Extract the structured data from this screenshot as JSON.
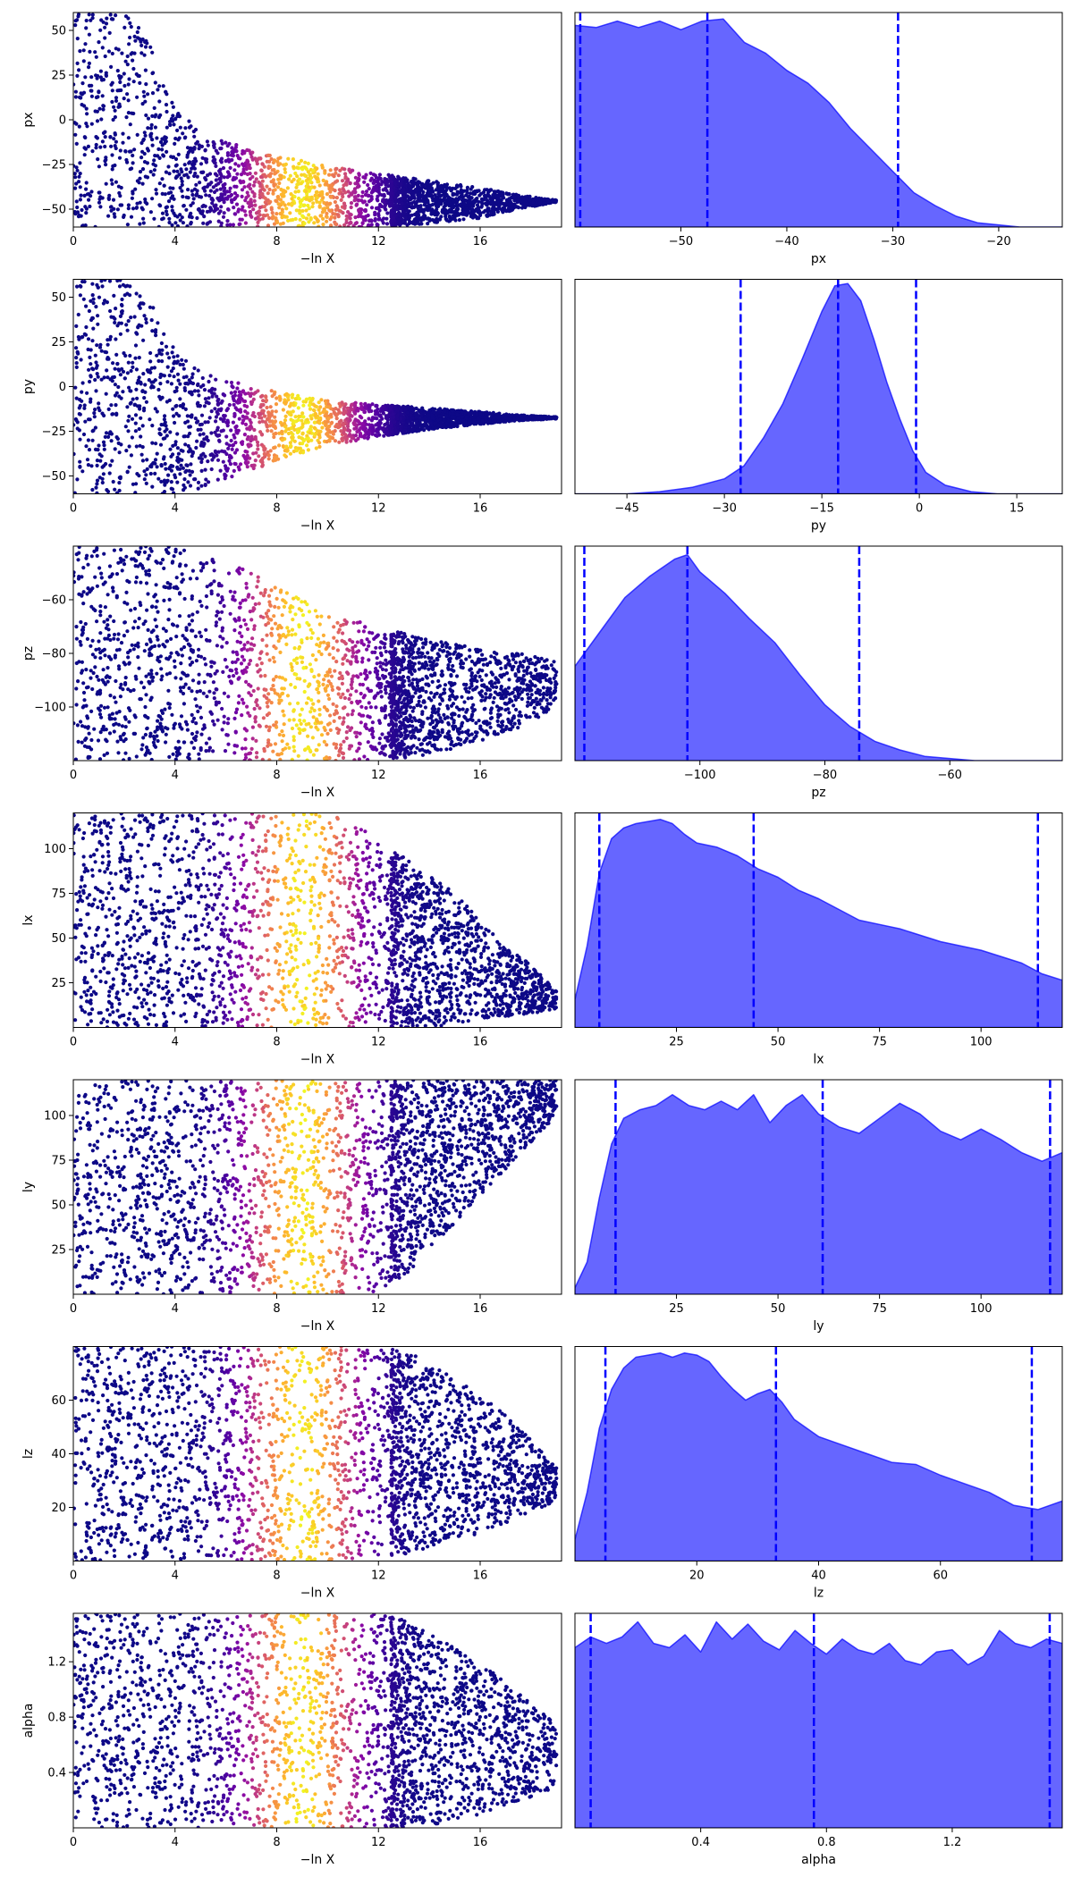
{
  "chart_data": [
    {
      "type": "scatter",
      "ylabel": "px",
      "xlabel": "−ln X",
      "xlim": [
        0,
        19.2
      ],
      "ylim": [
        -60,
        60
      ],
      "xticks": [
        0,
        4,
        8,
        12,
        16
      ],
      "yticks": [
        -50,
        -25,
        0,
        25,
        50
      ],
      "colormap": "plasma",
      "color_peak_x": 9,
      "envelope": {
        "x": [
          0,
          2,
          3,
          4,
          5,
          6,
          8,
          10,
          12,
          14,
          16,
          17.5,
          19
        ],
        "top": [
          60,
          60,
          45,
          5,
          -5,
          -12,
          -20,
          -26,
          -30,
          -34,
          -38,
          -42,
          -45
        ],
        "bottom": [
          -60,
          -60,
          -60,
          -60,
          -60,
          -60,
          -60,
          -60,
          -60,
          -58,
          -55,
          -50,
          -46
        ]
      }
    },
    {
      "type": "area",
      "xlabel": "px",
      "xlim": [
        -60,
        -14
      ],
      "xticks": [
        -50,
        -40,
        -30,
        -20
      ],
      "color": "#0000ff",
      "quantile_lines": [
        -59.5,
        -47.5,
        -29.5
      ],
      "x": [
        -60,
        -58,
        -56,
        -54,
        -52,
        -50,
        -48,
        -46,
        -44,
        -42,
        -40,
        -38,
        -36,
        -34,
        -32,
        -30,
        -28,
        -26,
        -24,
        -22,
        -20,
        -18,
        -16,
        -14
      ],
      "y": [
        0.94,
        0.93,
        0.96,
        0.93,
        0.96,
        0.92,
        0.96,
        0.97,
        0.86,
        0.81,
        0.73,
        0.67,
        0.58,
        0.46,
        0.36,
        0.26,
        0.16,
        0.1,
        0.05,
        0.02,
        0.01,
        0.0,
        0.0,
        0.0
      ]
    },
    {
      "type": "scatter",
      "ylabel": "py",
      "xlabel": "−ln X",
      "xlim": [
        0,
        19.2
      ],
      "ylim": [
        -60,
        60
      ],
      "xticks": [
        0,
        4,
        8,
        12,
        16
      ],
      "yticks": [
        -50,
        -25,
        0,
        25,
        50
      ],
      "colormap": "plasma",
      "color_peak_x": 9,
      "envelope": {
        "x": [
          0,
          2,
          3,
          4,
          5,
          6,
          8,
          10,
          12,
          14,
          16,
          17.5,
          19
        ],
        "top": [
          60,
          60,
          50,
          20,
          8,
          4,
          -3,
          -8,
          -10,
          -12,
          -14,
          -16,
          -17
        ],
        "bottom": [
          -60,
          -60,
          -60,
          -60,
          -58,
          -52,
          -42,
          -33,
          -28,
          -24,
          -21,
          -19,
          -18
        ]
      }
    },
    {
      "type": "area",
      "xlabel": "py",
      "xlim": [
        -53,
        22
      ],
      "xticks": [
        -45,
        -30,
        -15,
        0,
        15
      ],
      "color": "#0000ff",
      "quantile_lines": [
        -27.5,
        -12.5,
        -0.5
      ],
      "x": [
        -53,
        -45,
        -40,
        -35,
        -30,
        -27,
        -24,
        -21,
        -18,
        -15,
        -13,
        -11,
        -9,
        -7,
        -5,
        -3,
        -1,
        1,
        4,
        8,
        12,
        16,
        22
      ],
      "y": [
        0.0,
        0.0,
        0.01,
        0.03,
        0.07,
        0.13,
        0.26,
        0.42,
        0.63,
        0.85,
        0.97,
        0.98,
        0.9,
        0.72,
        0.52,
        0.35,
        0.2,
        0.1,
        0.04,
        0.01,
        0.0,
        0.0,
        0.0
      ]
    },
    {
      "type": "scatter",
      "ylabel": "pz",
      "xlabel": "−ln X",
      "xlim": [
        0,
        19.2
      ],
      "ylim": [
        -120,
        -40
      ],
      "xticks": [
        0,
        4,
        8,
        12,
        16
      ],
      "yticks": [
        -100,
        -80,
        -60
      ],
      "colormap": "plasma",
      "color_peak_x": 9,
      "envelope": {
        "x": [
          0,
          2,
          4,
          6,
          8,
          10,
          12,
          14,
          16,
          17.5,
          19
        ],
        "top": [
          -40,
          -40,
          -40,
          -45,
          -55,
          -65,
          -70,
          -75,
          -78,
          -80,
          -83
        ],
        "bottom": [
          -120,
          -120,
          -120,
          -120,
          -120,
          -120,
          -120,
          -118,
          -113,
          -108,
          -100
        ]
      }
    },
    {
      "type": "area",
      "xlabel": "pz",
      "xlim": [
        -120,
        -42
      ],
      "xticks": [
        -100,
        -80,
        -60
      ],
      "color": "#0000ff",
      "quantile_lines": [
        -118.5,
        -102,
        -74.5
      ],
      "x": [
        -120,
        -116,
        -112,
        -108,
        -104,
        -102,
        -100,
        -96,
        -92,
        -88,
        -84,
        -80,
        -76,
        -72,
        -68,
        -64,
        -60,
        -56,
        -52,
        -48,
        -42
      ],
      "y": [
        0.44,
        0.6,
        0.76,
        0.86,
        0.94,
        0.96,
        0.88,
        0.78,
        0.66,
        0.55,
        0.4,
        0.26,
        0.16,
        0.09,
        0.05,
        0.02,
        0.01,
        0.0,
        0.0,
        0.0,
        0.0
      ]
    },
    {
      "type": "scatter",
      "ylabel": "lx",
      "xlabel": "−ln X",
      "xlim": [
        0,
        19.2
      ],
      "ylim": [
        0,
        120
      ],
      "xticks": [
        0,
        4,
        8,
        12,
        16
      ],
      "yticks": [
        25,
        50,
        75,
        100
      ],
      "colormap": "plasma",
      "color_peak_x": 9,
      "envelope": {
        "x": [
          0,
          2,
          4,
          6,
          8,
          10,
          11,
          12,
          13,
          14,
          15,
          16,
          17,
          18,
          19
        ],
        "top": [
          120,
          120,
          120,
          120,
          120,
          120,
          115,
          105,
          95,
          85,
          75,
          60,
          45,
          35,
          20
        ],
        "bottom": [
          0,
          0,
          0,
          0,
          0,
          0,
          0,
          0,
          0,
          0,
          2,
          4,
          6,
          8,
          10
        ]
      }
    },
    {
      "type": "area",
      "xlabel": "lx",
      "xlim": [
        0,
        120
      ],
      "xticks": [
        25,
        50,
        75,
        100
      ],
      "color": "#0000ff",
      "quantile_lines": [
        6,
        44,
        114
      ],
      "x": [
        0,
        3,
        6,
        9,
        12,
        15,
        18,
        21,
        24,
        27,
        30,
        35,
        40,
        45,
        50,
        55,
        60,
        65,
        70,
        75,
        80,
        90,
        100,
        110,
        115,
        120
      ],
      "y": [
        0.13,
        0.38,
        0.72,
        0.88,
        0.93,
        0.95,
        0.96,
        0.97,
        0.95,
        0.9,
        0.86,
        0.84,
        0.8,
        0.74,
        0.7,
        0.64,
        0.6,
        0.55,
        0.5,
        0.48,
        0.46,
        0.4,
        0.36,
        0.3,
        0.25,
        0.22
      ]
    },
    {
      "type": "scatter",
      "ylabel": "ly",
      "xlabel": "−ln X",
      "xlim": [
        0,
        19.2
      ],
      "ylim": [
        0,
        120
      ],
      "xticks": [
        0,
        4,
        8,
        12,
        16
      ],
      "yticks": [
        25,
        50,
        75,
        100
      ],
      "colormap": "plasma",
      "color_peak_x": 9,
      "envelope": {
        "x": [
          0,
          4,
          8,
          10,
          12,
          13,
          14,
          15,
          16,
          17,
          18,
          19
        ],
        "top": [
          120,
          120,
          120,
          120,
          120,
          120,
          120,
          120,
          120,
          120,
          120,
          120
        ],
        "bottom": [
          0,
          0,
          0,
          0,
          0,
          10,
          25,
          40,
          55,
          70,
          85,
          100
        ]
      }
    },
    {
      "type": "area",
      "xlabel": "ly",
      "xlim": [
        0,
        120
      ],
      "xticks": [
        25,
        50,
        75,
        100
      ],
      "color": "#0000ff",
      "quantile_lines": [
        10,
        61,
        117
      ],
      "x": [
        0,
        3,
        6,
        9,
        12,
        16,
        20,
        24,
        28,
        32,
        36,
        40,
        44,
        48,
        52,
        56,
        60,
        65,
        70,
        75,
        80,
        85,
        90,
        95,
        100,
        105,
        110,
        115,
        120
      ],
      "y": [
        0.03,
        0.15,
        0.45,
        0.7,
        0.82,
        0.86,
        0.88,
        0.93,
        0.88,
        0.86,
        0.9,
        0.86,
        0.93,
        0.8,
        0.88,
        0.93,
        0.84,
        0.78,
        0.75,
        0.82,
        0.89,
        0.84,
        0.76,
        0.72,
        0.77,
        0.72,
        0.66,
        0.62,
        0.66
      ]
    },
    {
      "type": "scatter",
      "ylabel": "lz",
      "xlabel": "−ln X",
      "xlim": [
        0,
        19.2
      ],
      "ylim": [
        0,
        80
      ],
      "xticks": [
        0,
        4,
        8,
        12,
        16
      ],
      "yticks": [
        20,
        40,
        60
      ],
      "colormap": "plasma",
      "color_peak_x": 9,
      "envelope": {
        "x": [
          0,
          4,
          8,
          10,
          12,
          13,
          14,
          15,
          16,
          17,
          18,
          19
        ],
        "top": [
          80,
          80,
          80,
          80,
          80,
          78,
          75,
          68,
          62,
          55,
          45,
          35
        ],
        "bottom": [
          0,
          0,
          0,
          0,
          0,
          2,
          5,
          8,
          10,
          14,
          18,
          22
        ]
      }
    },
    {
      "type": "area",
      "xlabel": "lz",
      "xlim": [
        0,
        80
      ],
      "xticks": [
        20,
        40,
        60
      ],
      "color": "#0000ff",
      "quantile_lines": [
        5,
        33,
        75
      ],
      "x": [
        0,
        2,
        4,
        6,
        8,
        10,
        12,
        14,
        16,
        18,
        20,
        22,
        24,
        26,
        28,
        30,
        32,
        34,
        36,
        40,
        44,
        48,
        52,
        56,
        60,
        64,
        68,
        72,
        76,
        80
      ],
      "y": [
        0.1,
        0.32,
        0.62,
        0.8,
        0.9,
        0.95,
        0.96,
        0.97,
        0.95,
        0.97,
        0.96,
        0.93,
        0.86,
        0.8,
        0.75,
        0.78,
        0.8,
        0.74,
        0.66,
        0.58,
        0.54,
        0.5,
        0.46,
        0.45,
        0.4,
        0.36,
        0.32,
        0.26,
        0.24,
        0.28
      ]
    },
    {
      "type": "scatter",
      "ylabel": "alpha",
      "xlabel": "−ln X",
      "xlim": [
        0,
        19.2
      ],
      "ylim": [
        0,
        1.55
      ],
      "xticks": [
        0,
        4,
        8,
        12,
        16
      ],
      "yticks": [
        0.4,
        0.8,
        1.2
      ],
      "colormap": "plasma",
      "color_peak_x": 9,
      "envelope": {
        "x": [
          0,
          4,
          8,
          10,
          12,
          13,
          14,
          15,
          16,
          17,
          18,
          19
        ],
        "top": [
          1.55,
          1.55,
          1.55,
          1.55,
          1.55,
          1.5,
          1.4,
          1.3,
          1.2,
          1.05,
          0.9,
          0.75
        ],
        "bottom": [
          0,
          0,
          0,
          0,
          0,
          0,
          0.02,
          0.05,
          0.1,
          0.15,
          0.22,
          0.3
        ]
      }
    },
    {
      "type": "area",
      "xlabel": "alpha",
      "xlim": [
        0,
        1.55
      ],
      "xticks": [
        0.4,
        0.8,
        1.2
      ],
      "color": "#0000ff",
      "quantile_lines": [
        0.05,
        0.76,
        1.51
      ],
      "x": [
        0,
        0.05,
        0.1,
        0.15,
        0.2,
        0.25,
        0.3,
        0.35,
        0.4,
        0.45,
        0.5,
        0.55,
        0.6,
        0.65,
        0.7,
        0.75,
        0.8,
        0.85,
        0.9,
        0.95,
        1.0,
        1.05,
        1.1,
        1.15,
        1.2,
        1.25,
        1.3,
        1.35,
        1.4,
        1.45,
        1.5,
        1.55
      ],
      "y": [
        0.84,
        0.89,
        0.86,
        0.89,
        0.96,
        0.86,
        0.84,
        0.9,
        0.82,
        0.96,
        0.88,
        0.95,
        0.87,
        0.83,
        0.92,
        0.86,
        0.81,
        0.88,
        0.83,
        0.81,
        0.86,
        0.78,
        0.76,
        0.82,
        0.83,
        0.76,
        0.8,
        0.92,
        0.86,
        0.84,
        0.88,
        0.86
      ]
    }
  ]
}
